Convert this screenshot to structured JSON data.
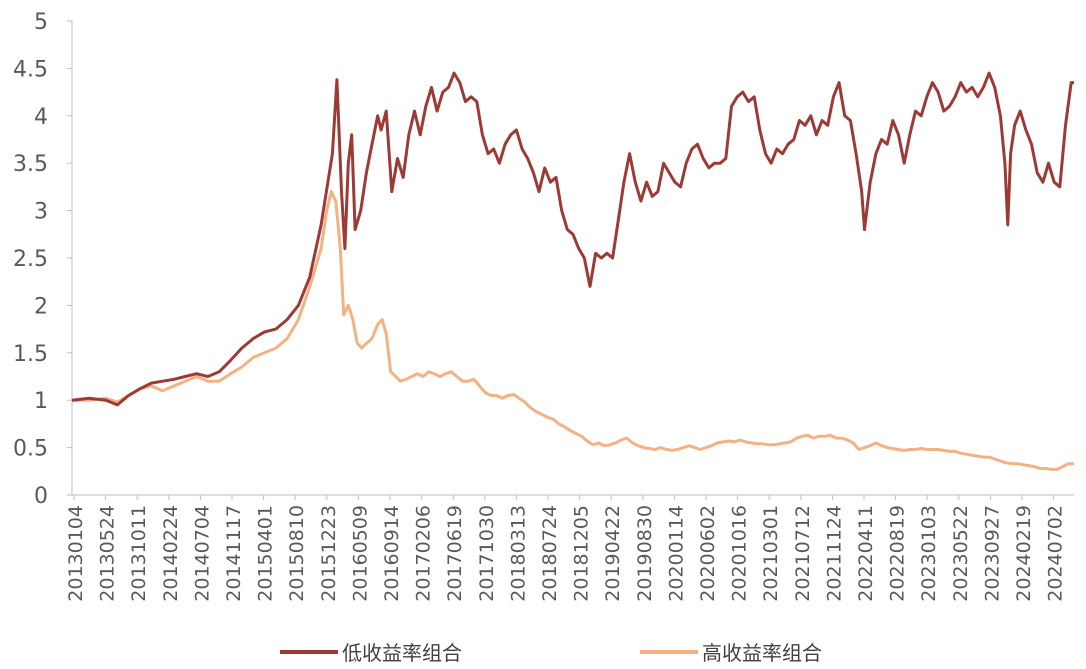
{
  "chart_data": {
    "type": "line",
    "title": "",
    "xlabel": "",
    "ylabel": "",
    "ylim": [
      0,
      5
    ],
    "y_ticks": [
      "0",
      "0.5",
      "1",
      "1.5",
      "2",
      "2.5",
      "3",
      "3.5",
      "4",
      "4.5",
      "5"
    ],
    "x_tick_labels": [
      "20130104",
      "20130524",
      "20131011",
      "20140224",
      "20140704",
      "20141117",
      "20150401",
      "20150810",
      "20151223",
      "20160509",
      "20160914",
      "20170206",
      "20170619",
      "20171030",
      "20180313",
      "20180724",
      "20181205",
      "20190422",
      "20190830",
      "20200114",
      "20200602",
      "20201016",
      "20210301",
      "20210712",
      "20211124",
      "20220411",
      "20220819",
      "20230103",
      "20230522",
      "20230927",
      "20240219",
      "20240702"
    ],
    "grid": false,
    "legend_position": "bottom",
    "colors": {
      "low": "#9e3a36",
      "high": "#f4b183",
      "axis": "#bfbfbf",
      "text": "#595959"
    },
    "series": [
      {
        "name": "低收益率组合",
        "color": "#9e3a36",
        "points": [
          [
            0,
            1.0
          ],
          [
            3,
            1.02
          ],
          [
            6,
            1.0
          ],
          [
            8,
            0.95
          ],
          [
            10,
            1.05
          ],
          [
            12,
            1.12
          ],
          [
            14,
            1.18
          ],
          [
            16,
            1.2
          ],
          [
            18,
            1.22
          ],
          [
            20,
            1.25
          ],
          [
            22,
            1.28
          ],
          [
            24,
            1.25
          ],
          [
            26,
            1.3
          ],
          [
            28,
            1.42
          ],
          [
            30,
            1.55
          ],
          [
            32,
            1.65
          ],
          [
            34,
            1.72
          ],
          [
            36,
            1.75
          ],
          [
            38,
            1.85
          ],
          [
            40,
            2.0
          ],
          [
            42,
            2.3
          ],
          [
            44,
            2.85
          ],
          [
            46,
            3.6
          ],
          [
            46.8,
            4.38
          ],
          [
            47.6,
            3.2
          ],
          [
            48.2,
            2.6
          ],
          [
            48.8,
            3.5
          ],
          [
            49.4,
            3.8
          ],
          [
            50,
            2.8
          ],
          [
            51,
            3.0
          ],
          [
            52,
            3.4
          ],
          [
            53,
            3.7
          ],
          [
            54,
            4.0
          ],
          [
            54.6,
            3.85
          ],
          [
            55.5,
            4.05
          ],
          [
            56.5,
            3.2
          ],
          [
            57.5,
            3.55
          ],
          [
            58.5,
            3.35
          ],
          [
            59.5,
            3.8
          ],
          [
            60.5,
            4.05
          ],
          [
            61.5,
            3.8
          ],
          [
            62.5,
            4.1
          ],
          [
            63.5,
            4.3
          ],
          [
            64.5,
            4.05
          ],
          [
            65.5,
            4.25
          ],
          [
            66.5,
            4.3
          ],
          [
            67.5,
            4.45
          ],
          [
            68.5,
            4.35
          ],
          [
            69.5,
            4.15
          ],
          [
            70.5,
            4.2
          ],
          [
            71.5,
            4.15
          ],
          [
            72.5,
            3.8
          ],
          [
            73.5,
            3.6
          ],
          [
            74.5,
            3.65
          ],
          [
            75.5,
            3.5
          ],
          [
            76.5,
            3.7
          ],
          [
            77.5,
            3.8
          ],
          [
            78.5,
            3.85
          ],
          [
            79.5,
            3.65
          ],
          [
            80.5,
            3.55
          ],
          [
            81.5,
            3.4
          ],
          [
            82.5,
            3.2
          ],
          [
            83.5,
            3.45
          ],
          [
            84.5,
            3.3
          ],
          [
            85.5,
            3.35
          ],
          [
            86.5,
            3.0
          ],
          [
            87.5,
            2.8
          ],
          [
            88.5,
            2.75
          ],
          [
            89.5,
            2.6
          ],
          [
            90.5,
            2.5
          ],
          [
            91.5,
            2.2
          ],
          [
            92.5,
            2.55
          ],
          [
            93.5,
            2.5
          ],
          [
            94.5,
            2.55
          ],
          [
            95.5,
            2.5
          ],
          [
            96.5,
            2.9
          ],
          [
            97.5,
            3.3
          ],
          [
            98.5,
            3.6
          ],
          [
            99.5,
            3.3
          ],
          [
            100.5,
            3.1
          ],
          [
            101.5,
            3.3
          ],
          [
            102.5,
            3.15
          ],
          [
            103.5,
            3.2
          ],
          [
            104.5,
            3.5
          ],
          [
            105.5,
            3.4
          ],
          [
            106.5,
            3.3
          ],
          [
            107.5,
            3.25
          ],
          [
            108.5,
            3.5
          ],
          [
            109.5,
            3.65
          ],
          [
            110.5,
            3.7
          ],
          [
            111.5,
            3.55
          ],
          [
            112.5,
            3.45
          ],
          [
            113.5,
            3.5
          ],
          [
            114.5,
            3.5
          ],
          [
            115.5,
            3.55
          ],
          [
            116.5,
            4.1
          ],
          [
            117.5,
            4.2
          ],
          [
            118.5,
            4.25
          ],
          [
            119.5,
            4.15
          ],
          [
            120.5,
            4.2
          ],
          [
            121.5,
            3.85
          ],
          [
            122.5,
            3.6
          ],
          [
            123.5,
            3.5
          ],
          [
            124.5,
            3.65
          ],
          [
            125.5,
            3.6
          ],
          [
            126.5,
            3.7
          ],
          [
            127.5,
            3.75
          ],
          [
            128.5,
            3.95
          ],
          [
            129.5,
            3.9
          ],
          [
            130.5,
            4.0
          ],
          [
            131.5,
            3.8
          ],
          [
            132.5,
            3.95
          ],
          [
            133.5,
            3.9
          ],
          [
            134.5,
            4.2
          ],
          [
            135.5,
            4.35
          ],
          [
            136.5,
            4.0
          ],
          [
            137.5,
            3.95
          ],
          [
            138.5,
            3.6
          ],
          [
            139.5,
            3.2
          ],
          [
            140,
            2.8
          ],
          [
            141,
            3.3
          ],
          [
            142,
            3.6
          ],
          [
            143,
            3.75
          ],
          [
            144,
            3.7
          ],
          [
            145,
            3.95
          ],
          [
            146,
            3.8
          ],
          [
            147,
            3.5
          ],
          [
            148,
            3.8
          ],
          [
            149,
            4.05
          ],
          [
            150,
            4.0
          ],
          [
            151,
            4.2
          ],
          [
            152,
            4.35
          ],
          [
            153,
            4.25
          ],
          [
            154,
            4.05
          ],
          [
            155,
            4.1
          ],
          [
            156,
            4.2
          ],
          [
            157,
            4.35
          ],
          [
            158,
            4.25
          ],
          [
            159,
            4.3
          ],
          [
            160,
            4.2
          ],
          [
            161,
            4.3
          ],
          [
            162,
            4.45
          ],
          [
            163,
            4.3
          ],
          [
            164,
            4.0
          ],
          [
            164.8,
            3.5
          ],
          [
            165.3,
            2.85
          ],
          [
            165.8,
            3.6
          ],
          [
            166.5,
            3.9
          ],
          [
            167.5,
            4.05
          ],
          [
            168.5,
            3.85
          ],
          [
            169.5,
            3.7
          ],
          [
            170.5,
            3.4
          ],
          [
            171.5,
            3.3
          ],
          [
            172.5,
            3.5
          ],
          [
            173.5,
            3.3
          ],
          [
            174.5,
            3.25
          ],
          [
            175.5,
            3.9
          ],
          [
            176.5,
            4.35
          ],
          [
            177,
            4.35
          ]
        ]
      },
      {
        "name": "高收益率组合",
        "color": "#f4b183",
        "points": [
          [
            0,
            1.0
          ],
          [
            3,
            1.0
          ],
          [
            6,
            1.02
          ],
          [
            8,
            0.98
          ],
          [
            10,
            1.05
          ],
          [
            12,
            1.12
          ],
          [
            14,
            1.15
          ],
          [
            16,
            1.1
          ],
          [
            18,
            1.15
          ],
          [
            20,
            1.2
          ],
          [
            22,
            1.25
          ],
          [
            24,
            1.2
          ],
          [
            26,
            1.2
          ],
          [
            28,
            1.28
          ],
          [
            30,
            1.35
          ],
          [
            32,
            1.45
          ],
          [
            34,
            1.5
          ],
          [
            36,
            1.55
          ],
          [
            38,
            1.65
          ],
          [
            40,
            1.85
          ],
          [
            42,
            2.2
          ],
          [
            44,
            2.6
          ],
          [
            45,
            3.0
          ],
          [
            45.8,
            3.2
          ],
          [
            46.6,
            3.1
          ],
          [
            47.4,
            2.6
          ],
          [
            48,
            1.9
          ],
          [
            48.8,
            2.0
          ],
          [
            49.6,
            1.85
          ],
          [
            50.4,
            1.6
          ],
          [
            51.2,
            1.55
          ],
          [
            52,
            1.6
          ],
          [
            53,
            1.65
          ],
          [
            54,
            1.8
          ],
          [
            54.8,
            1.85
          ],
          [
            55.5,
            1.7
          ],
          [
            56.3,
            1.3
          ],
          [
            57.2,
            1.25
          ],
          [
            58,
            1.2
          ],
          [
            59,
            1.22
          ],
          [
            60,
            1.25
          ],
          [
            61,
            1.28
          ],
          [
            62,
            1.25
          ],
          [
            63,
            1.3
          ],
          [
            64,
            1.28
          ],
          [
            65,
            1.25
          ],
          [
            66,
            1.28
          ],
          [
            67,
            1.3
          ],
          [
            68,
            1.25
          ],
          [
            69,
            1.2
          ],
          [
            70,
            1.2
          ],
          [
            71,
            1.22
          ],
          [
            72,
            1.15
          ],
          [
            73,
            1.08
          ],
          [
            74,
            1.05
          ],
          [
            75,
            1.05
          ],
          [
            76,
            1.02
          ],
          [
            77,
            1.05
          ],
          [
            78,
            1.06
          ],
          [
            79,
            1.02
          ],
          [
            80,
            0.98
          ],
          [
            81,
            0.92
          ],
          [
            82,
            0.88
          ],
          [
            83,
            0.85
          ],
          [
            84,
            0.82
          ],
          [
            85,
            0.8
          ],
          [
            86,
            0.75
          ],
          [
            87,
            0.72
          ],
          [
            88,
            0.68
          ],
          [
            89,
            0.65
          ],
          [
            90,
            0.62
          ],
          [
            91,
            0.57
          ],
          [
            92,
            0.53
          ],
          [
            93,
            0.55
          ],
          [
            94,
            0.52
          ],
          [
            95,
            0.53
          ],
          [
            96,
            0.55
          ],
          [
            97,
            0.58
          ],
          [
            98,
            0.6
          ],
          [
            99,
            0.55
          ],
          [
            100,
            0.52
          ],
          [
            101,
            0.5
          ],
          [
            102,
            0.49
          ],
          [
            103,
            0.48
          ],
          [
            104,
            0.5
          ],
          [
            105,
            0.48
          ],
          [
            106,
            0.47
          ],
          [
            107,
            0.48
          ],
          [
            108,
            0.5
          ],
          [
            109,
            0.52
          ],
          [
            110,
            0.5
          ],
          [
            111,
            0.48
          ],
          [
            112,
            0.5
          ],
          [
            113,
            0.52
          ],
          [
            114,
            0.55
          ],
          [
            115,
            0.56
          ],
          [
            116,
            0.57
          ],
          [
            117,
            0.56
          ],
          [
            118,
            0.58
          ],
          [
            119,
            0.56
          ],
          [
            120,
            0.55
          ],
          [
            121,
            0.54
          ],
          [
            122,
            0.54
          ],
          [
            123,
            0.53
          ],
          [
            124,
            0.53
          ],
          [
            125,
            0.54
          ],
          [
            126,
            0.55
          ],
          [
            127,
            0.56
          ],
          [
            128,
            0.6
          ],
          [
            129,
            0.62
          ],
          [
            130,
            0.63
          ],
          [
            131,
            0.6
          ],
          [
            132,
            0.62
          ],
          [
            133,
            0.62
          ],
          [
            134,
            0.63
          ],
          [
            135,
            0.6
          ],
          [
            136,
            0.6
          ],
          [
            137,
            0.58
          ],
          [
            138,
            0.55
          ],
          [
            139,
            0.48
          ],
          [
            140,
            0.5
          ],
          [
            141,
            0.52
          ],
          [
            142,
            0.55
          ],
          [
            143,
            0.52
          ],
          [
            144,
            0.5
          ],
          [
            145,
            0.49
          ],
          [
            146,
            0.48
          ],
          [
            147,
            0.47
          ],
          [
            148,
            0.48
          ],
          [
            149,
            0.48
          ],
          [
            150,
            0.49
          ],
          [
            151,
            0.48
          ],
          [
            152,
            0.48
          ],
          [
            153,
            0.48
          ],
          [
            154,
            0.47
          ],
          [
            155,
            0.46
          ],
          [
            156,
            0.46
          ],
          [
            157,
            0.44
          ],
          [
            158,
            0.43
          ],
          [
            159,
            0.42
          ],
          [
            160,
            0.41
          ],
          [
            161,
            0.4
          ],
          [
            162,
            0.4
          ],
          [
            163,
            0.38
          ],
          [
            164,
            0.36
          ],
          [
            165,
            0.34
          ],
          [
            166,
            0.33
          ],
          [
            167,
            0.33
          ],
          [
            168,
            0.32
          ],
          [
            169,
            0.31
          ],
          [
            170,
            0.3
          ],
          [
            171,
            0.28
          ],
          [
            172,
            0.28
          ],
          [
            173,
            0.27
          ],
          [
            174,
            0.27
          ],
          [
            175,
            0.3
          ],
          [
            176,
            0.33
          ],
          [
            177,
            0.33
          ]
        ]
      }
    ]
  }
}
